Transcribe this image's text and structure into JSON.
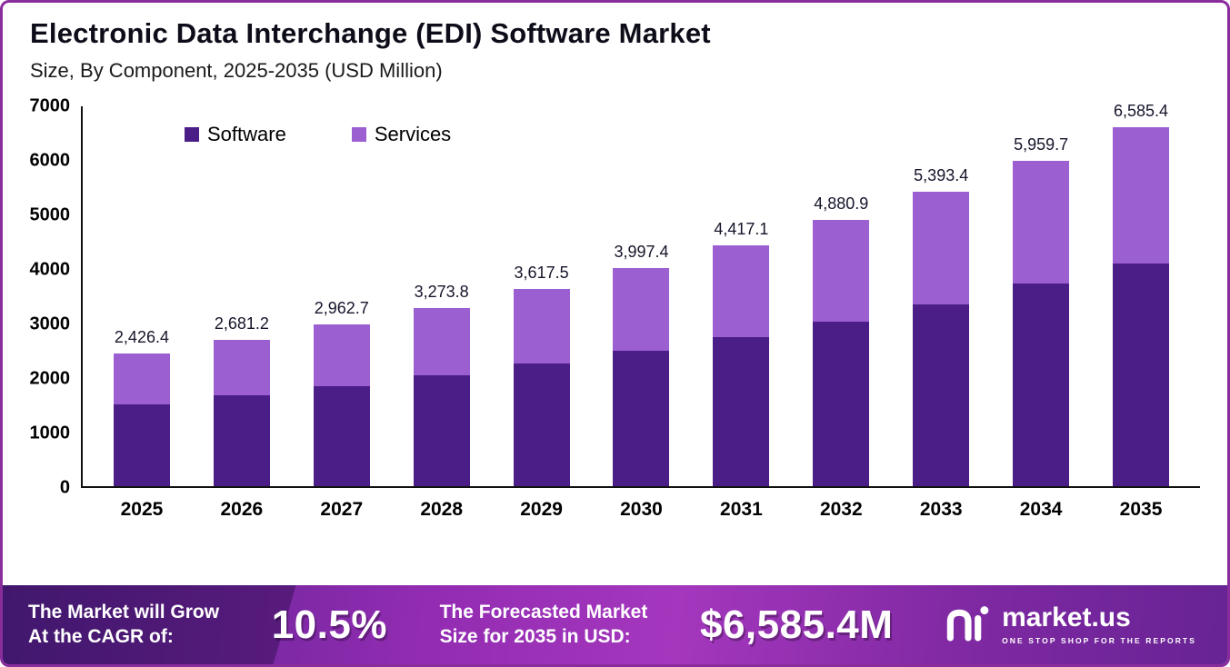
{
  "page": {
    "border_color": "#8a2d9c",
    "background": "#ffffff"
  },
  "header": {
    "title": "Electronic Data Interchange (EDI) Software Market",
    "subtitle": "Size, By Component, 2025-2035 (USD Million)"
  },
  "chart_data": {
    "type": "bar",
    "stacked": true,
    "title": "Electronic Data Interchange (EDI) Software Market Size, By Component, 2025-2035 (USD Million)",
    "categories": [
      "2025",
      "2026",
      "2027",
      "2028",
      "2029",
      "2030",
      "2031",
      "2032",
      "2033",
      "2034",
      "2035"
    ],
    "series": [
      {
        "name": "Software",
        "color": "#4a1d87",
        "values": [
          1500,
          1660,
          1840,
          2030,
          2250,
          2480,
          2730,
          3020,
          3340,
          3710,
          4080
        ]
      },
      {
        "name": "Services",
        "color": "#9c5fd2",
        "values": [
          926.4,
          1021.2,
          1122.7,
          1243.8,
          1367.5,
          1517.4,
          1687.1,
          1860.9,
          2053.4,
          2249.7,
          2505.4
        ]
      }
    ],
    "totals": [
      2426.4,
      2681.2,
      2962.7,
      3273.8,
      3617.5,
      3997.4,
      4417.1,
      4880.9,
      5393.4,
      5959.7,
      6585.4
    ],
    "total_labels": [
      "2,426.4",
      "2,681.2",
      "2,962.7",
      "3,273.8",
      "3,617.5",
      "3,997.4",
      "4,417.1",
      "4,880.9",
      "5,393.4",
      "5,959.7",
      "6,585.4"
    ],
    "y_axis": {
      "min": 0,
      "max": 7000,
      "ticks": [
        0,
        1000,
        2000,
        3000,
        4000,
        5000,
        6000,
        7000
      ]
    },
    "xlabel": "",
    "ylabel": "",
    "legend": [
      "Software",
      "Services"
    ],
    "legend_position": "top-left",
    "grid": false
  },
  "footer": {
    "cagr_label_line1": "The Market will Grow",
    "cagr_label_line2": "At the CAGR of:",
    "cagr_value": "10.5%",
    "forecast_label_line1": "The Forecasted Market",
    "forecast_label_line2": "Size for 2035 in USD:",
    "forecast_value": "$6,585.4M",
    "brand": "market.us",
    "brand_tagline": "ONE STOP SHOP FOR THE REPORTS"
  }
}
